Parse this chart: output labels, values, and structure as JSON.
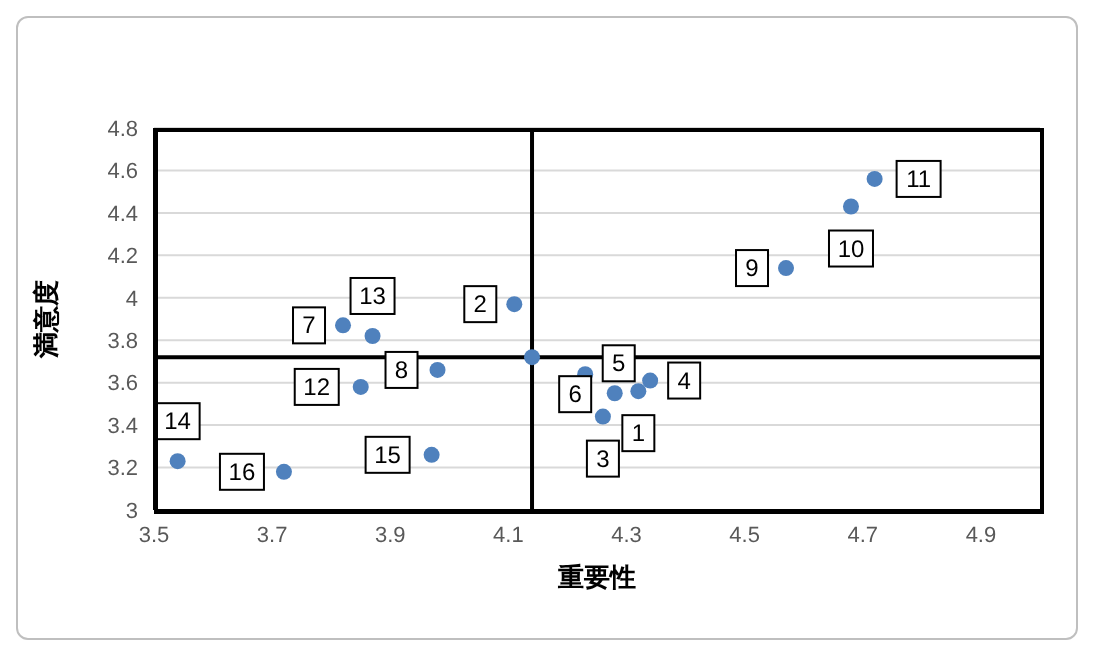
{
  "chart_data": {
    "type": "scatter",
    "xlabel": "重要性",
    "ylabel": "満意度",
    "x": [
      4.32,
      4.11,
      4.26,
      4.34,
      4.28,
      4.23,
      3.82,
      3.98,
      4.57,
      4.68,
      4.72,
      3.85,
      3.87,
      3.54,
      3.97,
      3.72,
      4.14
    ],
    "series": [
      {
        "color": "#4f81bd",
        "values": [
          3.56,
          3.97,
          3.44,
          3.61,
          3.55,
          3.64,
          3.87,
          3.66,
          4.14,
          4.43,
          4.56,
          3.58,
          3.82,
          3.23,
          3.26,
          3.18,
          3.72
        ]
      }
    ],
    "xlim": [
      3.5,
      5.0
    ],
    "xticks": [
      3.5,
      3.7,
      3.9,
      4.1,
      4.3,
      4.5,
      4.7,
      4.9
    ],
    "ylim": [
      3,
      4.8
    ],
    "yticks": [
      3,
      3.2,
      3.4,
      3.6,
      3.8,
      4,
      4.2,
      4.4,
      4.6,
      4.8
    ],
    "ref_lines": [
      {
        "axis": "x",
        "value": 4.14,
        "color": "#000000"
      },
      {
        "axis": "y",
        "value": 3.72,
        "color": "#000000"
      }
    ],
    "annotations": [
      {
        "text": "1",
        "x": 4.32,
        "y": 3.56
      },
      {
        "text": "2",
        "x": 4.11,
        "y": 3.97
      },
      {
        "text": "3",
        "x": 4.26,
        "y": 3.44
      },
      {
        "text": "4",
        "x": 4.34,
        "y": 3.61
      },
      {
        "text": "5",
        "x": 4.28,
        "y": 3.55
      },
      {
        "text": "6",
        "x": 4.23,
        "y": 3.64
      },
      {
        "text": "7",
        "x": 3.82,
        "y": 3.87
      },
      {
        "text": "8",
        "x": 3.98,
        "y": 3.66
      },
      {
        "text": "9",
        "x": 4.57,
        "y": 4.14
      },
      {
        "text": "10",
        "x": 4.68,
        "y": 4.43
      },
      {
        "text": "11",
        "x": 4.72,
        "y": 4.56
      },
      {
        "text": "12",
        "x": 3.85,
        "y": 3.58
      },
      {
        "text": "13",
        "x": 3.87,
        "y": 3.82
      },
      {
        "text": "14",
        "x": 3.54,
        "y": 3.23
      },
      {
        "text": "15",
        "x": 3.97,
        "y": 3.26
      },
      {
        "text": "16",
        "x": 3.72,
        "y": 3.18
      }
    ],
    "grid": "y",
    "marker": "circle",
    "legend": false
  }
}
